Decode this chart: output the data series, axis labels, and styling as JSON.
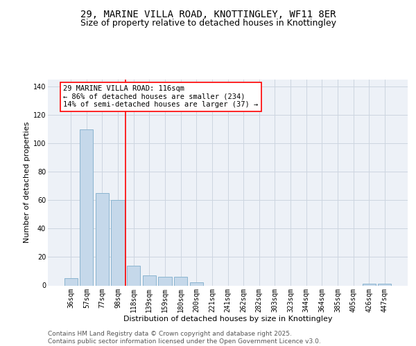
{
  "title_line1": "29, MARINE VILLA ROAD, KNOTTINGLEY, WF11 8ER",
  "title_line2": "Size of property relative to detached houses in Knottingley",
  "xlabel": "Distribution of detached houses by size in Knottingley",
  "ylabel": "Number of detached properties",
  "bar_color": "#c5d8ea",
  "bar_edge_color": "#8ab4d0",
  "categories": [
    "36sqm",
    "57sqm",
    "77sqm",
    "98sqm",
    "118sqm",
    "139sqm",
    "159sqm",
    "180sqm",
    "200sqm",
    "221sqm",
    "241sqm",
    "262sqm",
    "282sqm",
    "303sqm",
    "323sqm",
    "344sqm",
    "364sqm",
    "385sqm",
    "405sqm",
    "426sqm",
    "447sqm"
  ],
  "values": [
    5,
    110,
    65,
    60,
    14,
    7,
    6,
    6,
    2,
    0,
    0,
    0,
    0,
    0,
    0,
    0,
    0,
    0,
    0,
    1,
    1
  ],
  "ylim_max": 145,
  "yticks": [
    0,
    20,
    40,
    60,
    80,
    100,
    120,
    140
  ],
  "vline_x": 4.0,
  "annotation_text": "29 MARINE VILLA ROAD: 116sqm\n← 86% of detached houses are smaller (234)\n14% of semi-detached houses are larger (37) →",
  "grid_color": "#ccd5e0",
  "bg_color": "#edf1f7",
  "title_fontsize": 10,
  "subtitle_fontsize": 9,
  "axis_label_fontsize": 8,
  "tick_fontsize": 7,
  "annotation_fontsize": 7.5,
  "footer_fontsize": 6.5,
  "footer_text": "Contains HM Land Registry data © Crown copyright and database right 2025.\nContains public sector information licensed under the Open Government Licence v3.0."
}
